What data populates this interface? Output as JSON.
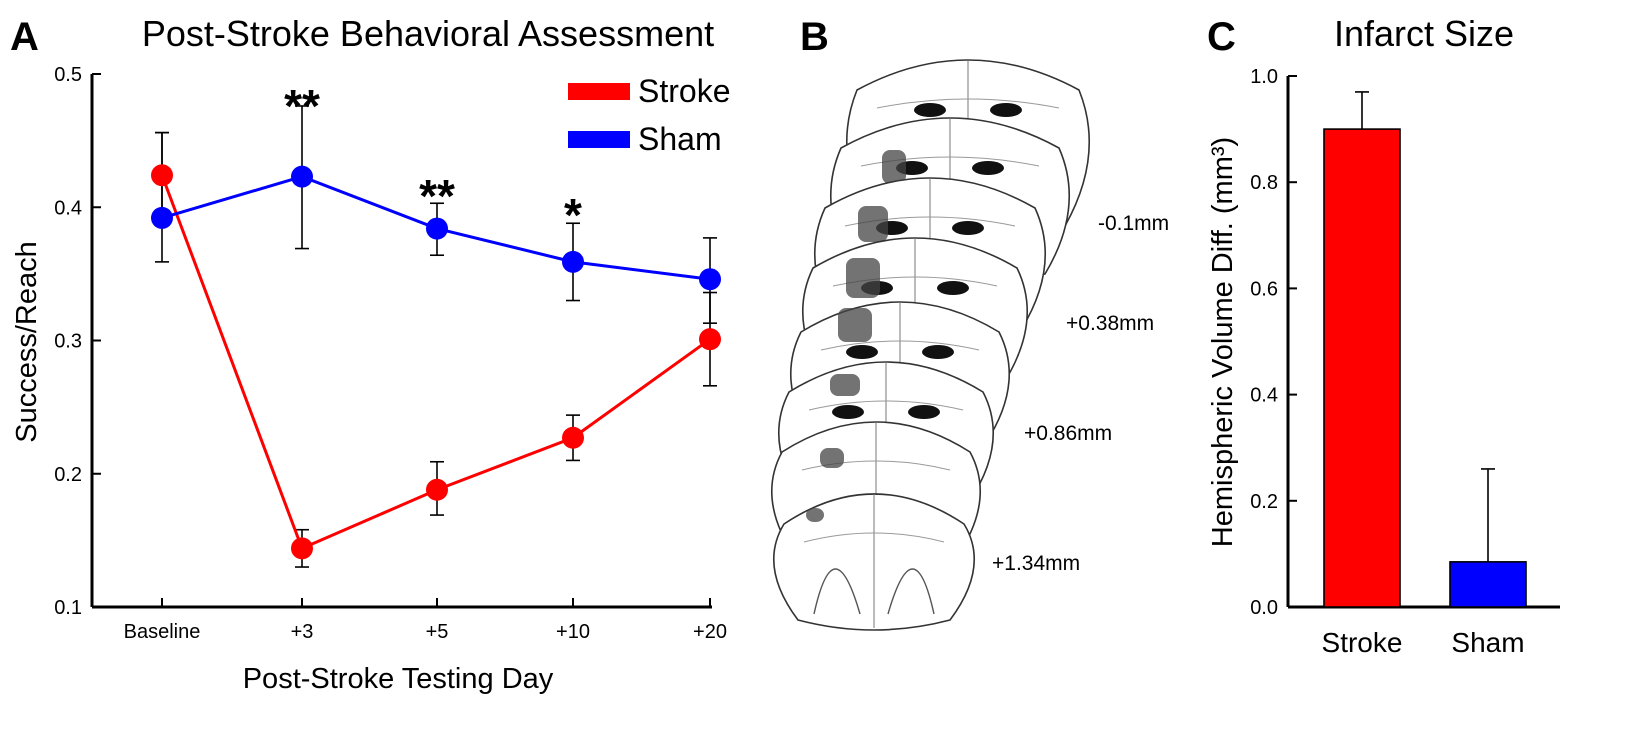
{
  "panels": {
    "a_letter": "A",
    "b_letter": "B",
    "c_letter": "C"
  },
  "chart_data": [
    {
      "type": "line",
      "title": "Post-Stroke Behavioral Assessment",
      "xlabel": "Post-Stroke Testing Day",
      "ylabel": "Success/Reach",
      "categories": [
        "Baseline",
        "+3",
        "+5",
        "+10",
        "+20"
      ],
      "ylim": [
        0.1,
        0.5
      ],
      "yticks": [
        "0.1",
        "0.2",
        "0.3",
        "0.4",
        "0.5"
      ],
      "series": [
        {
          "name": "Stroke",
          "color": "#ff0000",
          "values": [
            0.424,
            0.144,
            0.188,
            0.227,
            0.301
          ],
          "err_upper": [
            0.456,
            0.158,
            0.209,
            0.244,
            0.336
          ],
          "err_lower": [
            0.392,
            0.13,
            0.169,
            0.21,
            0.266
          ]
        },
        {
          "name": "Sham",
          "color": "#0000ff",
          "values": [
            0.392,
            0.423,
            0.384,
            0.359,
            0.346
          ],
          "err_upper": [
            0.456,
            0.476,
            0.403,
            0.388,
            0.377
          ],
          "err_lower": [
            0.359,
            0.369,
            0.364,
            0.33,
            0.313
          ]
        }
      ],
      "annotations": [
        "",
        "**",
        "**",
        "*",
        ""
      ],
      "legend_position": "top-right",
      "grid": false
    },
    {
      "type": "bar",
      "title": "Infarct Size",
      "xlabel": "",
      "ylabel": "Hemispheric Volume Diff. (mm³)",
      "categories": [
        "Stroke",
        "Sham"
      ],
      "values": [
        0.9,
        0.085
      ],
      "err_upper": [
        0.97,
        0.26
      ],
      "colors": [
        "#ff0000",
        "#0000ff"
      ],
      "ylim": [
        0.0,
        1.0
      ],
      "yticks": [
        "0.0",
        "0.2",
        "0.4",
        "0.6",
        "0.8",
        "1.0"
      ],
      "grid": false
    }
  ],
  "brain_slices": {
    "labels": [
      "-0.1mm",
      "+0.38mm",
      "+0.86mm",
      "+1.34mm"
    ]
  }
}
